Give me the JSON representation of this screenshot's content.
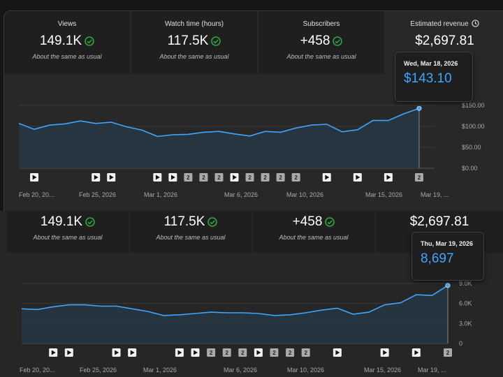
{
  "top": {
    "metrics": [
      {
        "label": "Views",
        "value": "149.1K",
        "sub": "About the same as usual"
      },
      {
        "label": "Watch time (hours)",
        "value": "117.5K",
        "sub": "About the same as usual"
      },
      {
        "label": "Subscribers",
        "value": "+458",
        "sub": "About the same as usual"
      },
      {
        "label": "Estimated revenue",
        "value": "$2,697.81"
      }
    ],
    "tooltip": {
      "date": "Wed, Mar 18, 2026",
      "value": "$143.10"
    }
  },
  "bottom": {
    "metrics": [
      {
        "value": "149.1K",
        "sub": "About the same as usual"
      },
      {
        "value": "117.5K",
        "sub": "About the same as usual"
      },
      {
        "value": "+458",
        "sub": "About the same as usual"
      },
      {
        "value": "$2,697.81"
      }
    ],
    "tooltip": {
      "date": "Thu, Mar 19, 2026",
      "value": "8,697"
    }
  },
  "colors": {
    "line": "#3ea6ff",
    "check": "#2ba640",
    "fill": "#263642",
    "bg": "#282828"
  },
  "icons": {
    "status": "check-circle-icon",
    "info": "clock-icon",
    "marker_video": "play-icon",
    "marker_multi": "multi-upload-badge-icon"
  },
  "chart_data": [
    {
      "type": "area",
      "metric": "Estimated revenue",
      "x": [
        "Feb 20, 20...",
        "Feb 21",
        "Feb 22",
        "Feb 23",
        "Feb 24",
        "Feb 25, 2026",
        "Feb 26",
        "Feb 27",
        "Feb 28",
        "Mar 1, 2026",
        "Mar 2",
        "Mar 3",
        "Mar 4",
        "Mar 5",
        "Mar 6, 2026",
        "Mar 7",
        "Mar 8",
        "Mar 9",
        "Mar 10, 2026",
        "Mar 11",
        "Mar 12",
        "Mar 13",
        "Mar 14",
        "Mar 15, 2026",
        "Mar 16",
        "Mar 17",
        "Mar 18",
        "Mar 19, ..."
      ],
      "values": [
        107,
        93,
        103,
        106,
        113,
        107,
        110,
        99,
        91,
        76,
        80,
        81,
        86,
        88,
        82,
        77,
        88,
        86,
        96,
        103,
        105,
        87,
        92,
        114,
        114,
        130,
        143,
        null
      ],
      "x_ticks": [
        "Feb 20, 20...",
        "Feb 25, 2026",
        "Mar 1, 2026",
        "Mar 6, 2026",
        "Mar 10, 2026",
        "Mar 15, 2026",
        "Mar 19, ..."
      ],
      "y_ticks": [
        "$150.00",
        "$100.00",
        "$50.00",
        "$0.00"
      ],
      "ylim": [
        0,
        150
      ],
      "highlight": {
        "x": "Mar 18",
        "value": 143.1
      },
      "markers": [
        "",
        "video",
        "",
        "",
        "",
        "video",
        "video",
        "",
        "",
        "video",
        "video",
        "multi",
        "multi",
        "multi",
        "video",
        "multi",
        "multi",
        "multi",
        "multi",
        "",
        "video",
        "",
        "video",
        "",
        "video",
        "",
        "multi",
        ""
      ]
    },
    {
      "type": "area",
      "metric": "Views",
      "x": [
        "Feb 20, 20...",
        "Feb 21",
        "Feb 22",
        "Feb 23",
        "Feb 24",
        "Feb 25, 2026",
        "Feb 26",
        "Feb 27",
        "Feb 28",
        "Mar 1, 2026",
        "Mar 2",
        "Mar 3",
        "Mar 4",
        "Mar 5",
        "Mar 6, 2026",
        "Mar 7",
        "Mar 8",
        "Mar 9",
        "Mar 10, 2026",
        "Mar 11",
        "Mar 12",
        "Mar 13",
        "Mar 14",
        "Mar 15, 2026",
        "Mar 16",
        "Mar 17",
        "Mar 18",
        "Mar 19, ..."
      ],
      "values": [
        5200,
        5100,
        5500,
        5800,
        5800,
        5600,
        5600,
        5200,
        4800,
        4200,
        4300,
        4500,
        4700,
        4600,
        4600,
        4500,
        4200,
        4300,
        4600,
        5000,
        5300,
        4400,
        4700,
        5800,
        6100,
        7300,
        7200,
        8697
      ],
      "x_ticks": [
        "Feb 20, 20...",
        "Feb 25, 2026",
        "Mar 1, 2026",
        "Mar 6, 2026",
        "Mar 10, 2026",
        "Mar 15, 2026",
        "Mar 19, ..."
      ],
      "y_ticks": [
        "9.0K",
        "6.0K",
        "3.0K",
        "0"
      ],
      "ylim": [
        0,
        9000
      ],
      "highlight": {
        "x": "Mar 19",
        "value": 8697
      },
      "markers": [
        "",
        "",
        "video",
        "video",
        "",
        "",
        "video",
        "video",
        "",
        "",
        "video",
        "video",
        "multi",
        "multi",
        "multi",
        "video",
        "multi",
        "multi",
        "multi",
        "",
        "video",
        "",
        "",
        "video",
        "",
        "video",
        "",
        "multi"
      ]
    }
  ]
}
